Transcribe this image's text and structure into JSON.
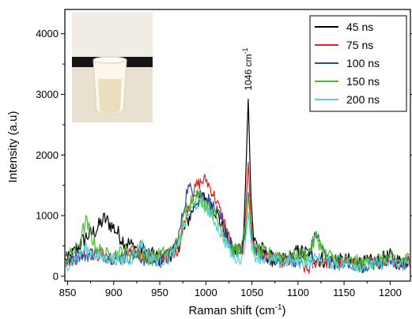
{
  "chart_data": {
    "type": "line",
    "xlabel": "Raman shift (cm",
    "xlabel_sup": "-1",
    "xlabel_close": ")",
    "ylabel": "Intensity (a.u)",
    "xlim": [
      847,
      1222
    ],
    "ylim": [
      -80,
      4400
    ],
    "xticks": [
      "850",
      "900",
      "950",
      "1000",
      "1050",
      "1100",
      "1150",
      "1200"
    ],
    "yticks": [
      "0",
      "1000",
      "2000",
      "3000",
      "4000"
    ],
    "annotation": {
      "text": "1046 cm",
      "sup": "-1",
      "x": 1046,
      "y": 3000
    },
    "legend_position": "top-right",
    "inset_photo": "vial-photo",
    "series": [
      {
        "name": "45 ns",
        "color": "#000000",
        "x": [
          850,
          860,
          870,
          880,
          890,
          900,
          910,
          920,
          930,
          940,
          950,
          960,
          970,
          980,
          990,
          1000,
          1010,
          1020,
          1030,
          1040,
          1043,
          1046,
          1049,
          1052,
          1060,
          1070,
          1080,
          1090,
          1100,
          1110,
          1120,
          1130,
          1140,
          1150,
          1160,
          1170,
          1180,
          1190,
          1200,
          1210,
          1220
        ],
        "y": [
          250,
          450,
          650,
          750,
          950,
          800,
          600,
          500,
          450,
          350,
          300,
          350,
          500,
          900,
          1250,
          1300,
          1100,
          750,
          400,
          500,
          1500,
          2920,
          1300,
          600,
          450,
          300,
          250,
          300,
          400,
          380,
          300,
          260,
          220,
          250,
          240,
          200,
          230,
          260,
          320,
          230,
          270
        ]
      },
      {
        "name": "75 ns",
        "color": "#e02020",
        "x": [
          850,
          860,
          870,
          880,
          890,
          900,
          910,
          920,
          930,
          940,
          950,
          960,
          970,
          980,
          990,
          1000,
          1010,
          1020,
          1030,
          1040,
          1043,
          1046,
          1049,
          1052,
          1060,
          1070,
          1080,
          1090,
          1100,
          1110,
          1120,
          1130,
          1140,
          1150,
          1160,
          1170,
          1180,
          1190,
          1200,
          1210,
          1220
        ],
        "y": [
          250,
          300,
          400,
          350,
          350,
          300,
          350,
          400,
          350,
          300,
          300,
          350,
          450,
          1100,
          1500,
          1600,
          1300,
          900,
          400,
          450,
          1000,
          1880,
          900,
          500,
          350,
          300,
          250,
          250,
          220,
          100,
          250,
          240,
          220,
          200,
          230,
          180,
          220,
          250,
          280,
          220,
          250
        ]
      },
      {
        "name": "100 ns",
        "color": "#2c4aa0",
        "x": [
          850,
          860,
          870,
          880,
          890,
          900,
          910,
          920,
          930,
          940,
          950,
          960,
          970,
          980,
          990,
          1000,
          1010,
          1020,
          1030,
          1040,
          1043,
          1046,
          1049,
          1052,
          1060,
          1070,
          1080,
          1090,
          1100,
          1110,
          1120,
          1130,
          1140,
          1150,
          1160,
          1170,
          1180,
          1190,
          1200,
          1210,
          1220
        ],
        "y": [
          300,
          350,
          350,
          400,
          350,
          300,
          300,
          350,
          300,
          250,
          250,
          300,
          600,
          1450,
          1400,
          1300,
          1100,
          800,
          400,
          400,
          750,
          1380,
          800,
          450,
          350,
          300,
          250,
          300,
          250,
          300,
          700,
          300,
          250,
          220,
          200,
          180,
          200,
          230,
          250,
          200,
          230
        ]
      },
      {
        "name": "150 ns",
        "color": "#4cbb2e",
        "x": [
          850,
          860,
          870,
          880,
          890,
          900,
          910,
          920,
          930,
          940,
          950,
          960,
          970,
          980,
          990,
          1000,
          1010,
          1020,
          1030,
          1040,
          1043,
          1046,
          1049,
          1052,
          1060,
          1070,
          1080,
          1090,
          1100,
          1110,
          1120,
          1130,
          1140,
          1150,
          1160,
          1170,
          1180,
          1190,
          1200,
          1210,
          1220
        ],
        "y": [
          300,
          450,
          900,
          500,
          350,
          350,
          400,
          400,
          350,
          300,
          350,
          400,
          550,
          1200,
          1350,
          1200,
          1000,
          700,
          400,
          500,
          800,
          1320,
          800,
          450,
          400,
          350,
          350,
          300,
          350,
          350,
          650,
          350,
          300,
          250,
          230,
          220,
          250,
          280,
          300,
          250,
          280
        ]
      },
      {
        "name": "200 ns",
        "color": "#5fd0d8",
        "x": [
          850,
          860,
          870,
          880,
          890,
          900,
          910,
          920,
          930,
          940,
          950,
          960,
          970,
          980,
          990,
          1000,
          1010,
          1020,
          1030,
          1040,
          1043,
          1046,
          1049,
          1052,
          1060,
          1070,
          1080,
          1090,
          1100,
          1110,
          1120,
          1130,
          1140,
          1150,
          1160,
          1170,
          1180,
          1190,
          1200,
          1210,
          1220
        ],
        "y": [
          200,
          300,
          450,
          350,
          300,
          300,
          250,
          300,
          550,
          300,
          250,
          300,
          500,
          1000,
          1200,
          1150,
          900,
          600,
          300,
          300,
          600,
          1050,
          600,
          350,
          300,
          250,
          230,
          250,
          220,
          230,
          300,
          240,
          220,
          200,
          190,
          170,
          190,
          210,
          230,
          190,
          210
        ]
      }
    ]
  }
}
